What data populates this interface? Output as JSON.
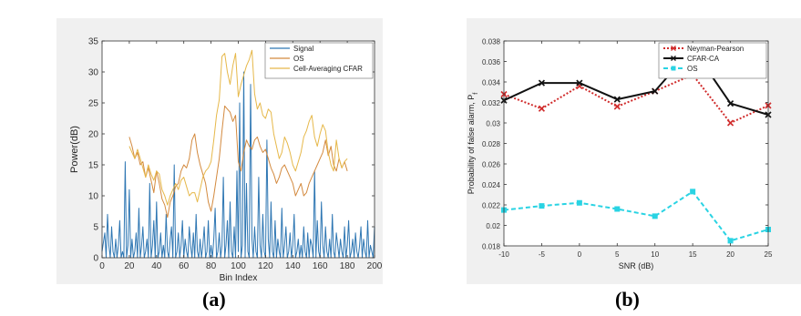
{
  "chart_data": [
    {
      "type": "line",
      "xlabel": "Bin Index",
      "ylabel": "Power(dB)",
      "xlim": [
        0,
        200
      ],
      "ylim": [
        0,
        35
      ],
      "xticks": [
        "0",
        "20",
        "40",
        "60",
        "80",
        "100",
        "120",
        "140",
        "160",
        "180",
        "200"
      ],
      "yticks": [
        "0",
        "5",
        "10",
        "15",
        "20",
        "25",
        "30",
        "35"
      ],
      "legend_position": "top-right",
      "series": [
        {
          "name": "Signal",
          "color": "#2f77b3",
          "x": [
            0,
            2,
            3,
            4,
            5,
            6,
            7,
            8,
            9,
            10,
            11,
            12,
            13,
            14,
            15,
            16,
            17,
            18,
            19,
            20,
            21,
            22,
            23,
            24,
            25,
            26,
            27,
            28,
            29,
            30,
            31,
            32,
            33,
            34,
            35,
            36,
            37,
            38,
            39,
            40,
            41,
            42,
            43,
            44,
            45,
            46,
            47,
            48,
            49,
            50,
            51,
            52,
            53,
            54,
            55,
            56,
            57,
            58,
            59,
            60,
            61,
            62,
            63,
            64,
            65,
            66,
            67,
            68,
            69,
            70,
            71,
            72,
            73,
            74,
            75,
            76,
            77,
            78,
            79,
            80,
            81,
            82,
            83,
            84,
            85,
            86,
            87,
            88,
            89,
            90,
            91,
            92,
            93,
            94,
            95,
            96,
            97,
            98,
            99,
            100,
            101,
            102,
            103,
            104,
            105,
            106,
            107,
            108,
            109,
            110,
            111,
            112,
            113,
            114,
            115,
            116,
            117,
            118,
            119,
            120,
            121,
            122,
            123,
            124,
            125,
            126,
            127,
            128,
            129,
            130,
            131,
            132,
            133,
            134,
            135,
            136,
            137,
            138,
            139,
            140,
            141,
            142,
            143,
            144,
            145,
            146,
            147,
            148,
            149,
            150,
            151,
            152,
            153,
            154,
            155,
            156,
            157,
            158,
            159,
            160,
            161,
            162,
            163,
            164,
            165,
            166,
            167,
            168,
            169,
            170,
            171,
            172,
            173,
            174,
            175,
            176,
            177,
            178,
            179,
            180,
            181,
            182,
            183,
            184,
            185,
            186,
            187,
            188,
            189,
            190,
            191,
            192,
            193,
            194,
            195,
            196,
            197,
            198,
            199,
            200
          ],
          "y": [
            1,
            4,
            0,
            7,
            2,
            0,
            5,
            1,
            0,
            3,
            0,
            2,
            6,
            0,
            1,
            0,
            15.5,
            0,
            2,
            11,
            0,
            3,
            0,
            1,
            4,
            0,
            8,
            0,
            2,
            5,
            0,
            1,
            3,
            0,
            12,
            0,
            2,
            6,
            0,
            9,
            0,
            1,
            4,
            0,
            2,
            0,
            7,
            1,
            0,
            3,
            5,
            0,
            15,
            0,
            1,
            4,
            0,
            2,
            6,
            0,
            3,
            1,
            0,
            5,
            2,
            0,
            4,
            0,
            7,
            1,
            0,
            3,
            0,
            2,
            5,
            0,
            1,
            6,
            0,
            2,
            0,
            3,
            8,
            0,
            1,
            4,
            0,
            2,
            13,
            0,
            2,
            6,
            0,
            9,
            1,
            0,
            5,
            0,
            14,
            1,
            25,
            0,
            2,
            30,
            0,
            12,
            1,
            0,
            28,
            3,
            0,
            5,
            1,
            0,
            13,
            2,
            0,
            7,
            1,
            0,
            19,
            3,
            0,
            9,
            1,
            0,
            6,
            0,
            3,
            1,
            0,
            8,
            0,
            2,
            5,
            0,
            1,
            4,
            0,
            2,
            7,
            0,
            1,
            3,
            0,
            2,
            0,
            5,
            1,
            0,
            4,
            0,
            3,
            2,
            0,
            14,
            0,
            6,
            1,
            0,
            9,
            2,
            0,
            5,
            1,
            0,
            3,
            0,
            7,
            1,
            0,
            4,
            2,
            0,
            3,
            1,
            0,
            5,
            0,
            2,
            6,
            0,
            1,
            3,
            0,
            4,
            1,
            0,
            2,
            5,
            0,
            3,
            1,
            0,
            6,
            0,
            2,
            1,
            0,
            5
          ]
        },
        {
          "name": "OS",
          "color": "#d38a3f",
          "x": [
            20,
            22,
            24,
            26,
            28,
            30,
            32,
            34,
            36,
            38,
            40,
            42,
            44,
            46,
            48,
            50,
            52,
            54,
            56,
            58,
            60,
            62,
            64,
            66,
            68,
            70,
            72,
            74,
            76,
            78,
            80,
            82,
            84,
            86,
            88,
            90,
            92,
            94,
            96,
            98,
            100,
            102,
            104,
            106,
            108,
            110,
            112,
            114,
            116,
            118,
            120,
            122,
            124,
            126,
            128,
            130,
            132,
            134,
            136,
            138,
            140,
            142,
            144,
            146,
            148,
            150,
            152,
            154,
            156,
            158,
            160,
            162,
            164,
            166,
            168,
            170,
            172,
            174,
            176,
            178,
            180
          ],
          "y": [
            19.5,
            18,
            16,
            17,
            15,
            15.5,
            13,
            14.5,
            12.5,
            10.5,
            14,
            12,
            9.5,
            8.5,
            6.5,
            9,
            10,
            11.5,
            12,
            14,
            15,
            14.5,
            16,
            19,
            20,
            17,
            15,
            13.5,
            12,
            9,
            7.5,
            10,
            13,
            16,
            20.5,
            24.5,
            24,
            23.5,
            22,
            23,
            15.5,
            14,
            17,
            19,
            18,
            17.5,
            19,
            19.5,
            18,
            17,
            17.5,
            16,
            14.5,
            13.5,
            12,
            13,
            14.5,
            15,
            14,
            13,
            12,
            10,
            11,
            12,
            10,
            10.5,
            12,
            13,
            14,
            15,
            16,
            17,
            19,
            16.5,
            18,
            15,
            14,
            16,
            14.5,
            15.5,
            14
          ]
        },
        {
          "name": "Cell-Averaging CFAR",
          "color": "#e6b84a",
          "x": [
            20,
            22,
            24,
            26,
            28,
            30,
            32,
            34,
            36,
            38,
            40,
            42,
            44,
            46,
            48,
            50,
            52,
            54,
            56,
            58,
            60,
            62,
            64,
            66,
            68,
            70,
            72,
            74,
            76,
            78,
            80,
            82,
            84,
            86,
            88,
            90,
            92,
            94,
            96,
            98,
            100,
            102,
            104,
            106,
            108,
            110,
            112,
            114,
            116,
            118,
            120,
            122,
            124,
            126,
            128,
            130,
            132,
            134,
            136,
            138,
            140,
            142,
            144,
            146,
            148,
            150,
            152,
            154,
            156,
            158,
            160,
            162,
            164,
            166,
            168,
            170,
            172,
            174,
            176,
            178,
            180
          ],
          "y": [
            18,
            17,
            16,
            17.5,
            16,
            14.5,
            13,
            15,
            13.5,
            12.5,
            14,
            13.5,
            11,
            10,
            8.5,
            10,
            11,
            12,
            11,
            12.5,
            13,
            11.5,
            10,
            10.5,
            10.5,
            9,
            11,
            13,
            14,
            14.5,
            15.5,
            19,
            23,
            25.5,
            32.5,
            33,
            30,
            28,
            31,
            33,
            26,
            28,
            29.5,
            31,
            32,
            33.5,
            26.5,
            24,
            25,
            23,
            22.5,
            24,
            23.5,
            20,
            18,
            16,
            17,
            19.5,
            18.5,
            17,
            15,
            14,
            15.5,
            17,
            19.5,
            20.5,
            22,
            23,
            19.5,
            18,
            20,
            21.5,
            20.5,
            17,
            15,
            14,
            19,
            16,
            14.5,
            15.5,
            16
          ]
        }
      ]
    },
    {
      "type": "line",
      "xlabel": "SNR (dB)",
      "ylabel": "Probability of false alarm, P",
      "ylabel_sub": "f",
      "xlim": [
        -10,
        25
      ],
      "ylim": [
        0.018,
        0.038
      ],
      "xticks": [
        "-10",
        "-5",
        "0",
        "5",
        "10",
        "15",
        "20",
        "25"
      ],
      "yticks": [
        "0.018",
        "0.02",
        "0.022",
        "0.024",
        "0.026",
        "0.028",
        "0.03",
        "0.032",
        "0.034",
        "0.036",
        "0.038"
      ],
      "legend_position": "top-right",
      "series": [
        {
          "name": "Neyman-Pearson",
          "color": "#d02c2c",
          "style": "dotted",
          "marker": "x",
          "x": [
            -10,
            -5,
            0,
            5,
            10,
            15,
            20,
            25
          ],
          "y": [
            0.0328,
            0.0314,
            0.0336,
            0.0316,
            0.0331,
            0.0347,
            0.03,
            0.0317
          ]
        },
        {
          "name": "CFAR-CA",
          "color": "#111111",
          "style": "solid",
          "marker": "x",
          "x": [
            -10,
            -5,
            0,
            5,
            10,
            15,
            20,
            25
          ],
          "y": [
            0.0322,
            0.0339,
            0.0339,
            0.0323,
            0.0331,
            0.0373,
            0.0319,
            0.0308
          ]
        },
        {
          "name": "OS",
          "color": "#29d3e3",
          "style": "dashed",
          "marker": "square",
          "x": [
            -10,
            -5,
            0,
            5,
            10,
            15,
            20,
            25
          ],
          "y": [
            0.0215,
            0.0219,
            0.0222,
            0.0216,
            0.0209,
            0.0233,
            0.0185,
            0.0196
          ]
        }
      ]
    }
  ],
  "panel_labels": [
    "(a)",
    "(b)"
  ]
}
